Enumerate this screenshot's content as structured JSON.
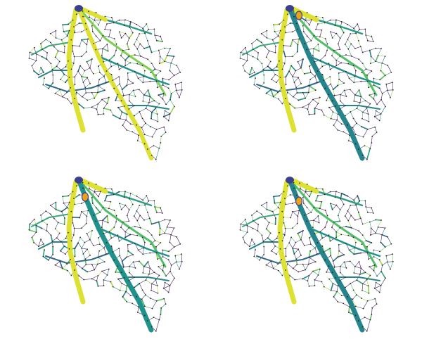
{
  "figure": {
    "description_colors": {
      "background": "#ffffff",
      "node": "#3a2208",
      "node_highlight": "#e8a317",
      "source": "#3b3f8f"
    },
    "colormap": [
      "#440154",
      "#3b528b",
      "#21918c",
      "#5ec962",
      "#fde725"
    ],
    "panels": [
      {
        "id": "p1",
        "dominant_pathway": "left-and-center-yellow",
        "midrib_level": 0.95,
        "left_branch_level": 0.95,
        "has_extra_source": false
      },
      {
        "id": "p2",
        "dominant_pathway": "left-yellow-center-teal",
        "midrib_level": 0.45,
        "left_branch_level": 0.95,
        "has_extra_source": true
      },
      {
        "id": "p3",
        "dominant_pathway": "left-yellow-center-teal",
        "midrib_level": 0.5,
        "left_branch_level": 0.95,
        "has_extra_source": true
      },
      {
        "id": "p4",
        "dominant_pathway": "left-yellow-center-teal",
        "midrib_level": 0.45,
        "left_branch_level": 0.95,
        "has_extra_source": true
      }
    ]
  }
}
